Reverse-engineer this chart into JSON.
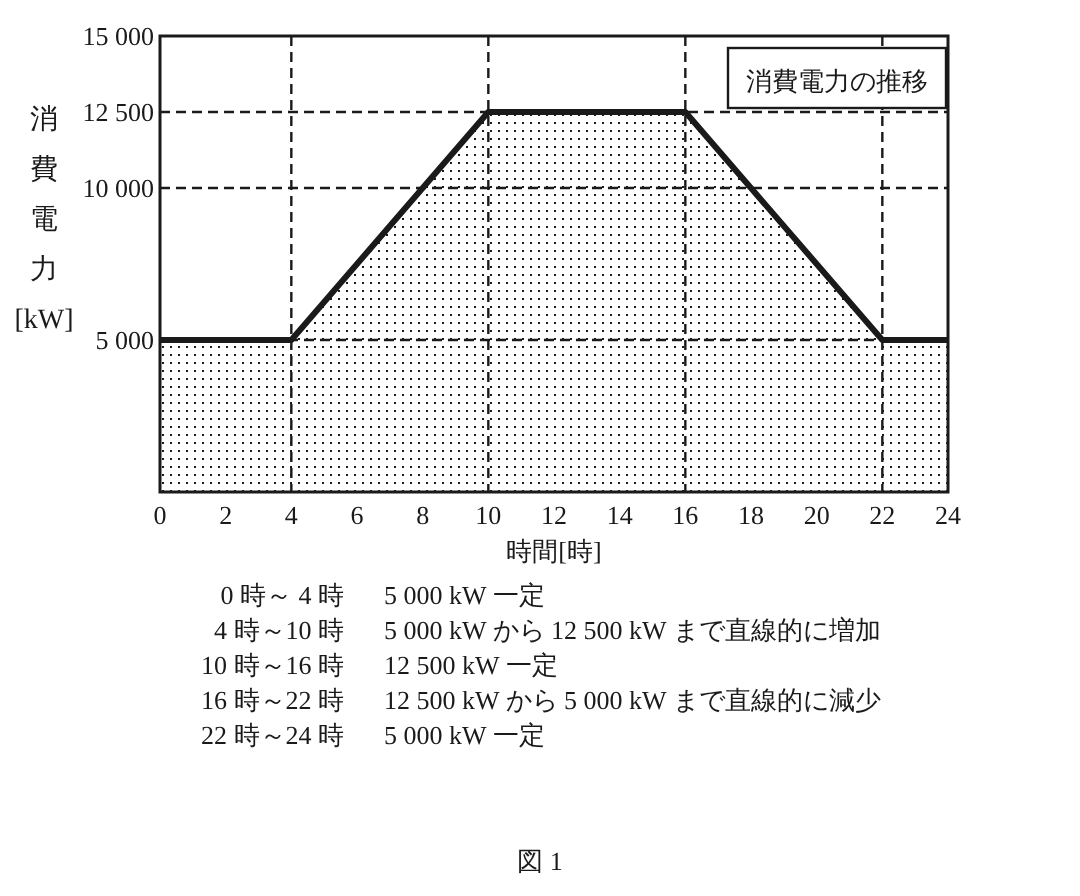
{
  "chart_data": {
    "type": "area",
    "xlabel": "時間[時]",
    "ylabel": "消費電力[kW]",
    "x": [
      0,
      4,
      10,
      16,
      22,
      24
    ],
    "series": [
      {
        "color": "#1a1a1a",
        "values": [
          5000,
          5000,
          12500,
          12500,
          5000,
          5000
        ]
      }
    ],
    "xlim": [
      0,
      24
    ],
    "ylim": [
      0,
      15000
    ],
    "xticks": [
      0,
      2,
      4,
      6,
      8,
      10,
      12,
      14,
      16,
      18,
      20,
      22,
      24
    ],
    "yticks": [
      {
        "value": 0,
        "label": null
      },
      {
        "value": 5000,
        "label": "5 000"
      },
      {
        "value": 10000,
        "label": "10 000"
      },
      {
        "value": 12500,
        "label": "12 500"
      },
      {
        "value": 15000,
        "label": "15 000"
      }
    ],
    "ref_lines": [
      {
        "axis": "x",
        "value": 4,
        "line_style": "dashed",
        "color": "#1a1a1a"
      },
      {
        "axis": "x",
        "value": 10,
        "line_style": "dashed",
        "color": "#1a1a1a"
      },
      {
        "axis": "x",
        "value": 16,
        "line_style": "dashed",
        "color": "#1a1a1a"
      },
      {
        "axis": "x",
        "value": 22,
        "line_style": "dashed",
        "color": "#1a1a1a"
      },
      {
        "axis": "y",
        "value": 5000,
        "line_style": "dashed",
        "color": "#1a1a1a"
      },
      {
        "axis": "y",
        "value": 10000,
        "line_style": "dashed",
        "color": "#1a1a1a"
      },
      {
        "axis": "y",
        "value": 12500,
        "line_style": "dashed",
        "color": "#1a1a1a"
      }
    ],
    "annotations": [
      "消費電力の推移",
      "0 時～ 4 時",
      "5 000 kW 一定",
      "4 時～10 時",
      "5 000 kW から 12 500 kW まで直線的に増加",
      "10 時～16 時",
      "12 500 kW 一定",
      "16 時～22 時",
      "12 500 kW から 5 000 kW まで直線的に減少",
      "22 時～24 時",
      "5 000 kW 一定",
      "図 1"
    ],
    "grid": false,
    "line_style": "solid",
    "marker": "none"
  }
}
